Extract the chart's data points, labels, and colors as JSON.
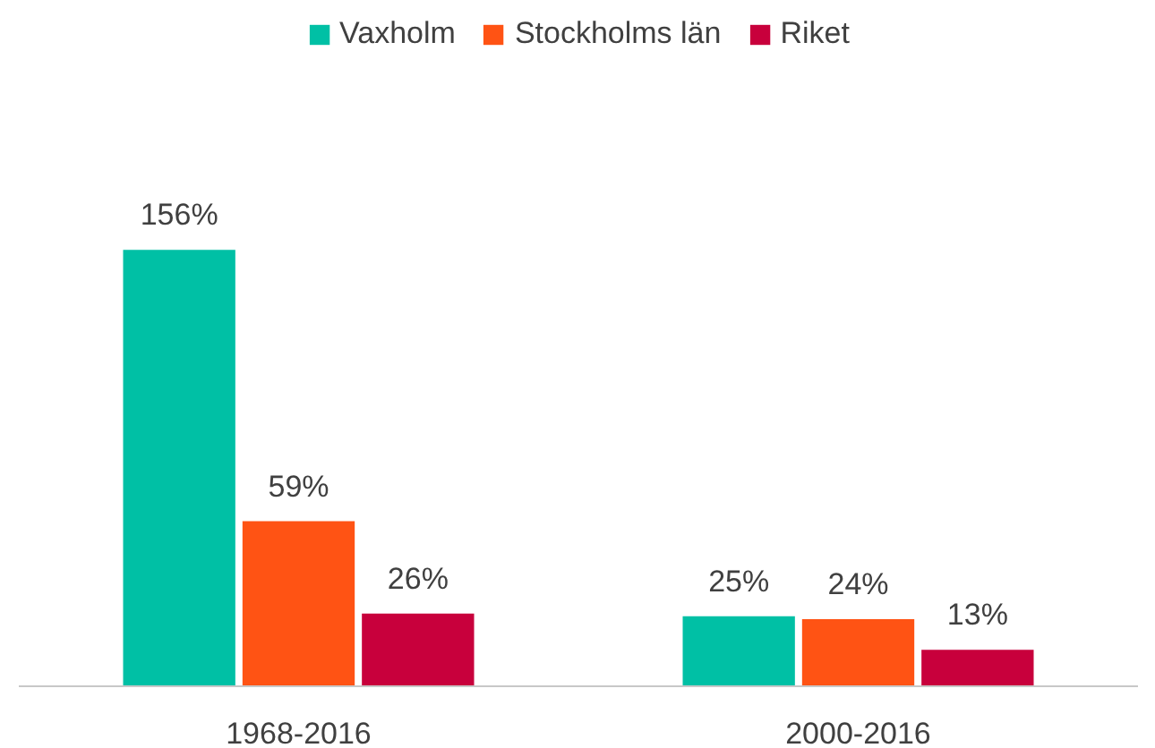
{
  "chart_data": {
    "type": "bar",
    "categories": [
      "1968-2016",
      "2000-2016"
    ],
    "series": [
      {
        "name": "Vaxholm",
        "color": "#00c0a5",
        "values": [
          156,
          25
        ],
        "value_labels": [
          "156%",
          "25%"
        ]
      },
      {
        "name": "Stockholms län",
        "color": "#ff5314",
        "values": [
          59,
          24
        ],
        "value_labels": [
          "59%",
          "24%"
        ]
      },
      {
        "name": "Riket",
        "color": "#c8003c",
        "values": [
          26,
          13
        ],
        "value_labels": [
          "26%",
          "13%"
        ]
      }
    ],
    "legend": "top"
  }
}
